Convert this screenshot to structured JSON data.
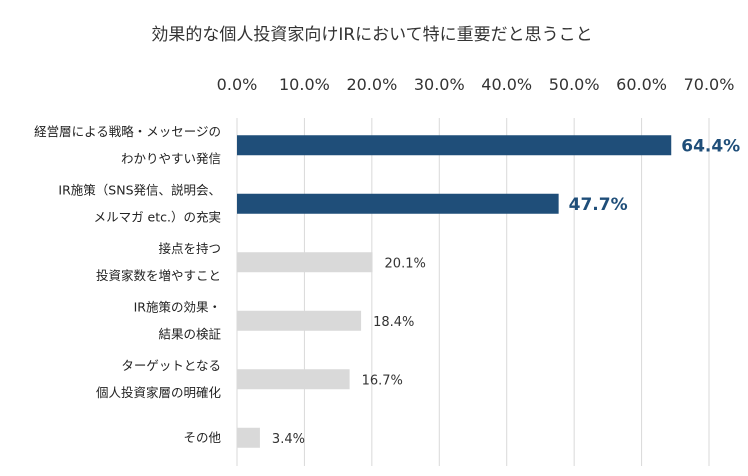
{
  "chart_data": {
    "type": "bar",
    "orientation": "horizontal",
    "title": "効果的な個人投資家向けIRにおいて特に重要だと思うこと",
    "xlim": [
      0,
      70
    ],
    "xticks": [
      "0.0%",
      "10.0%",
      "20.0%",
      "30.0%",
      "40.0%",
      "50.0%",
      "60.0%",
      "70.0%"
    ],
    "axis_position": "top",
    "grid": true,
    "categories": [
      [
        "経営層による戦略・メッセージの",
        "わかりやすい発信"
      ],
      [
        "IR施策（SNS発信、説明会、",
        "メルマガ etc.）の充実"
      ],
      [
        "接点を持つ",
        "投資家数を増やすこと"
      ],
      [
        "IR施策の効果・",
        "結果の検証"
      ],
      [
        "ターゲットとなる",
        "個人投資家層の明確化"
      ],
      [
        "その他"
      ]
    ],
    "values": [
      64.4,
      47.7,
      20.1,
      18.4,
      16.7,
      3.4
    ],
    "value_labels": [
      "64.4%",
      "47.7%",
      "20.1%",
      "18.4%",
      "16.7%",
      "3.4%"
    ],
    "highlighted": [
      true,
      true,
      false,
      false,
      false,
      false
    ],
    "colors": {
      "highlight": "#1f4e79",
      "normal": "#d9d9d9",
      "highlight_label": "#1f4e79"
    }
  }
}
